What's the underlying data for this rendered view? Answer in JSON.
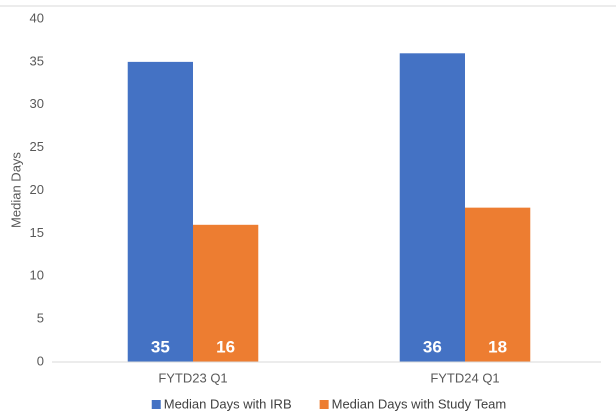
{
  "chart_data": {
    "type": "bar",
    "y_label": "Median Days",
    "categories": [
      "FYTD23 Q1",
      "FYTD24 Q1"
    ],
    "series": [
      {
        "name": "Median Days with IRB",
        "color": "#4472c4",
        "values": [
          35,
          36
        ]
      },
      {
        "name": "Median Days with Study Team",
        "color": "#ed7d31",
        "values": [
          16,
          18
        ]
      }
    ],
    "ylim": [
      0,
      40
    ],
    "yticks": [
      0,
      5,
      10,
      15,
      20,
      25,
      30,
      35,
      40
    ],
    "grid": false,
    "legend": "bottom"
  }
}
